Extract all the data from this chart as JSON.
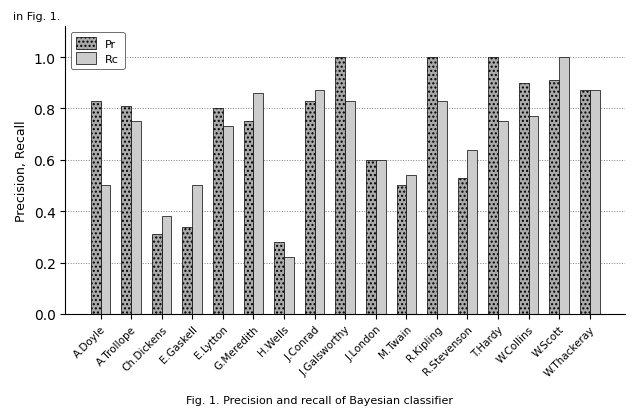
{
  "authors": [
    "A.Doyle",
    "A.Trollope",
    "Ch.Dickens",
    "E.Gaskell",
    "E.Lytton",
    "G.Meredith",
    "H.Wells",
    "J.Conrad",
    "J.Galsworthy",
    "J.London",
    "M.Twain",
    "R.Kipling",
    "R.Stevenson",
    "T.Hardy",
    "W.Collins",
    "W.Scott",
    "W.Thackeray"
  ],
  "precision": [
    0.83,
    0.81,
    0.31,
    0.34,
    0.8,
    0.75,
    0.28,
    0.83,
    1.0,
    0.6,
    0.5,
    1.0,
    0.53,
    1.0,
    0.9,
    0.91,
    0.87
  ],
  "recall": [
    0.5,
    0.75,
    0.38,
    0.5,
    0.73,
    0.86,
    0.22,
    0.87,
    0.83,
    0.6,
    0.54,
    0.83,
    0.64,
    0.75,
    0.77,
    1.0,
    0.87
  ],
  "pr_color": "#aaaaaa",
  "rc_color": "#cccccc",
  "pr_hatch": "....",
  "rc_hatch": "",
  "ylabel": "Precision, Recall",
  "ylim": [
    0,
    1.12
  ],
  "yticks": [
    0,
    0.2,
    0.4,
    0.6,
    0.8,
    1
  ],
  "legend_pr": "Pr",
  "legend_rc": "Rc",
  "fig_caption": "Fig. 1. Precision and recall of Bayesian classifier",
  "top_label": "in Fig. 1."
}
